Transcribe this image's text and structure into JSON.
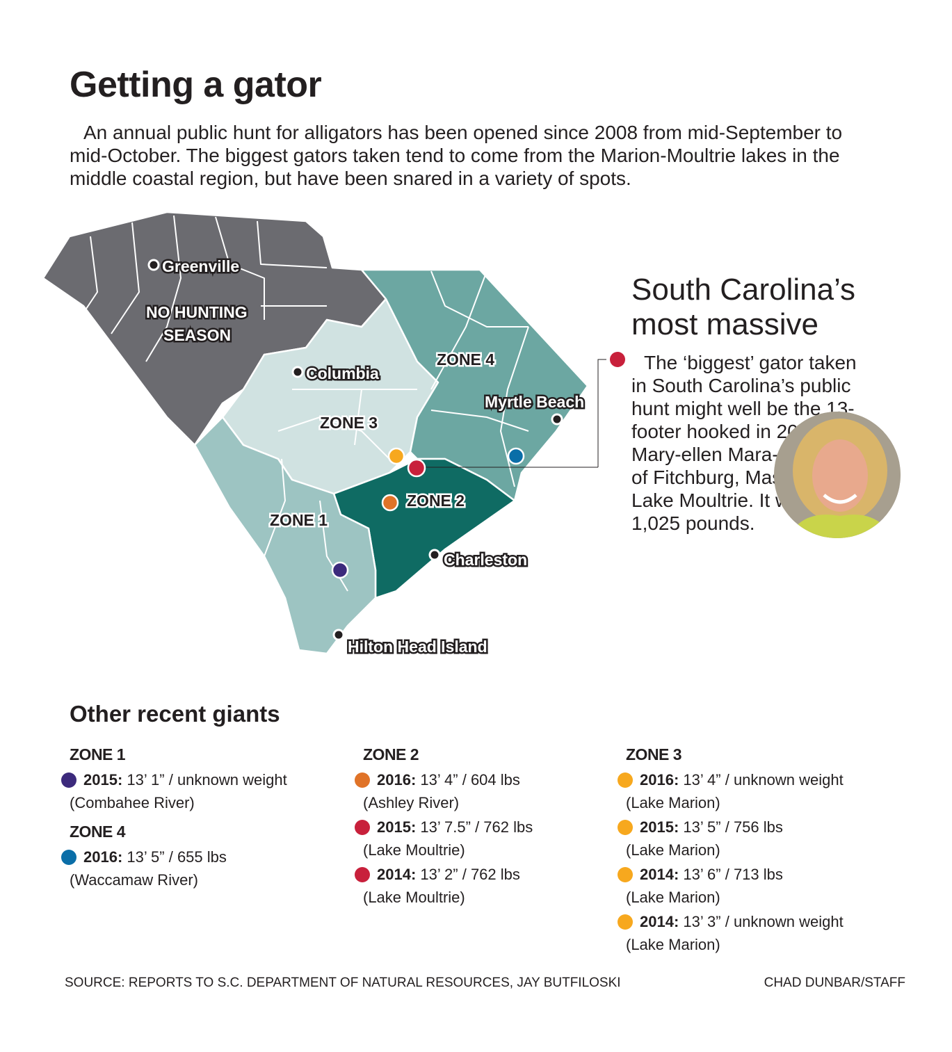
{
  "title": "Getting a gator",
  "intro": "An annual public hunt for alligators has been opened since 2008 from mid-September to mid-October. The biggest gators taken tend to come from the Marion-Moultrie lakes in the middle coastal region, but have been snared in a variety of spots.",
  "map": {
    "cities": [
      "Greenville",
      "Columbia",
      "Myrtle Beach",
      "Charleston",
      "Hilton Head Island"
    ],
    "no_hunting": [
      "NO HUNTING",
      "SEASON"
    ],
    "zones": [
      "ZONE 1",
      "ZONE 2",
      "ZONE 3",
      "ZONE 4"
    ],
    "colors": {
      "no_hunting": "#6b6b70",
      "zone1": "#9dc4c2",
      "zone2": "#0f6b63",
      "zone3": "#d0e2e1",
      "zone4": "#6ca7a2"
    }
  },
  "sidebar": {
    "title_line1": "South Carolina’s",
    "title_line2": "most massive",
    "text": "The ‘biggest’ gator taken in South Carolina’s public hunt might well be the 13-footer hooked in 2010 by Mary-ellen Mara-Christian, of Fitchburg, Mass., on Lake Moultrie. It weighed 1,025 pounds."
  },
  "dot_colors": {
    "purple": "#3c2a7c",
    "blue": "#0a6ea8",
    "orange": "#e07328",
    "red": "#c8203b",
    "yellow": "#f7a81e"
  },
  "giants": {
    "title": "Other recent giants",
    "zone1": {
      "label": "ZONE 1",
      "entries": [
        {
          "year": "2015:",
          "detail": " 13’ 1” / unknown weight",
          "location": "(Combahee River)"
        }
      ]
    },
    "zone4": {
      "label": "ZONE 4",
      "entries": [
        {
          "year": "2016:",
          "detail": " 13’ 5” / 655 lbs",
          "location": "(Waccamaw River)"
        }
      ]
    },
    "zone2": {
      "label": "ZONE 2",
      "entries": [
        {
          "year": "2016:",
          "detail": " 13’ 4” / 604 lbs",
          "location": "(Ashley River)"
        },
        {
          "year": "2015:",
          "detail": " 13’ 7.5” / 762 lbs",
          "location": "(Lake Moultrie)"
        },
        {
          "year": "2014:",
          "detail": " 13’ 2” / 762 lbs",
          "location": "(Lake Moultrie)"
        }
      ]
    },
    "zone3": {
      "label": "ZONE 3",
      "entries": [
        {
          "year": "2016:",
          "detail": " 13’ 4” / unknown weight",
          "location": "(Lake Marion)"
        },
        {
          "year": "2015:",
          "detail": " 13’ 5” / 756 lbs",
          "location": "(Lake Marion)"
        },
        {
          "year": "2014:",
          "detail": " 13’ 6” / 713 lbs",
          "location": "(Lake Marion)"
        },
        {
          "year": "2014:",
          "detail": " 13’ 3” / unknown weight",
          "location": "(Lake Marion)"
        }
      ]
    }
  },
  "source": "SOURCE: REPORTS TO S.C. DEPARTMENT OF NATURAL RESOURCES, JAY BUTFILOSKI",
  "credit": "CHAD DUNBAR/STAFF"
}
